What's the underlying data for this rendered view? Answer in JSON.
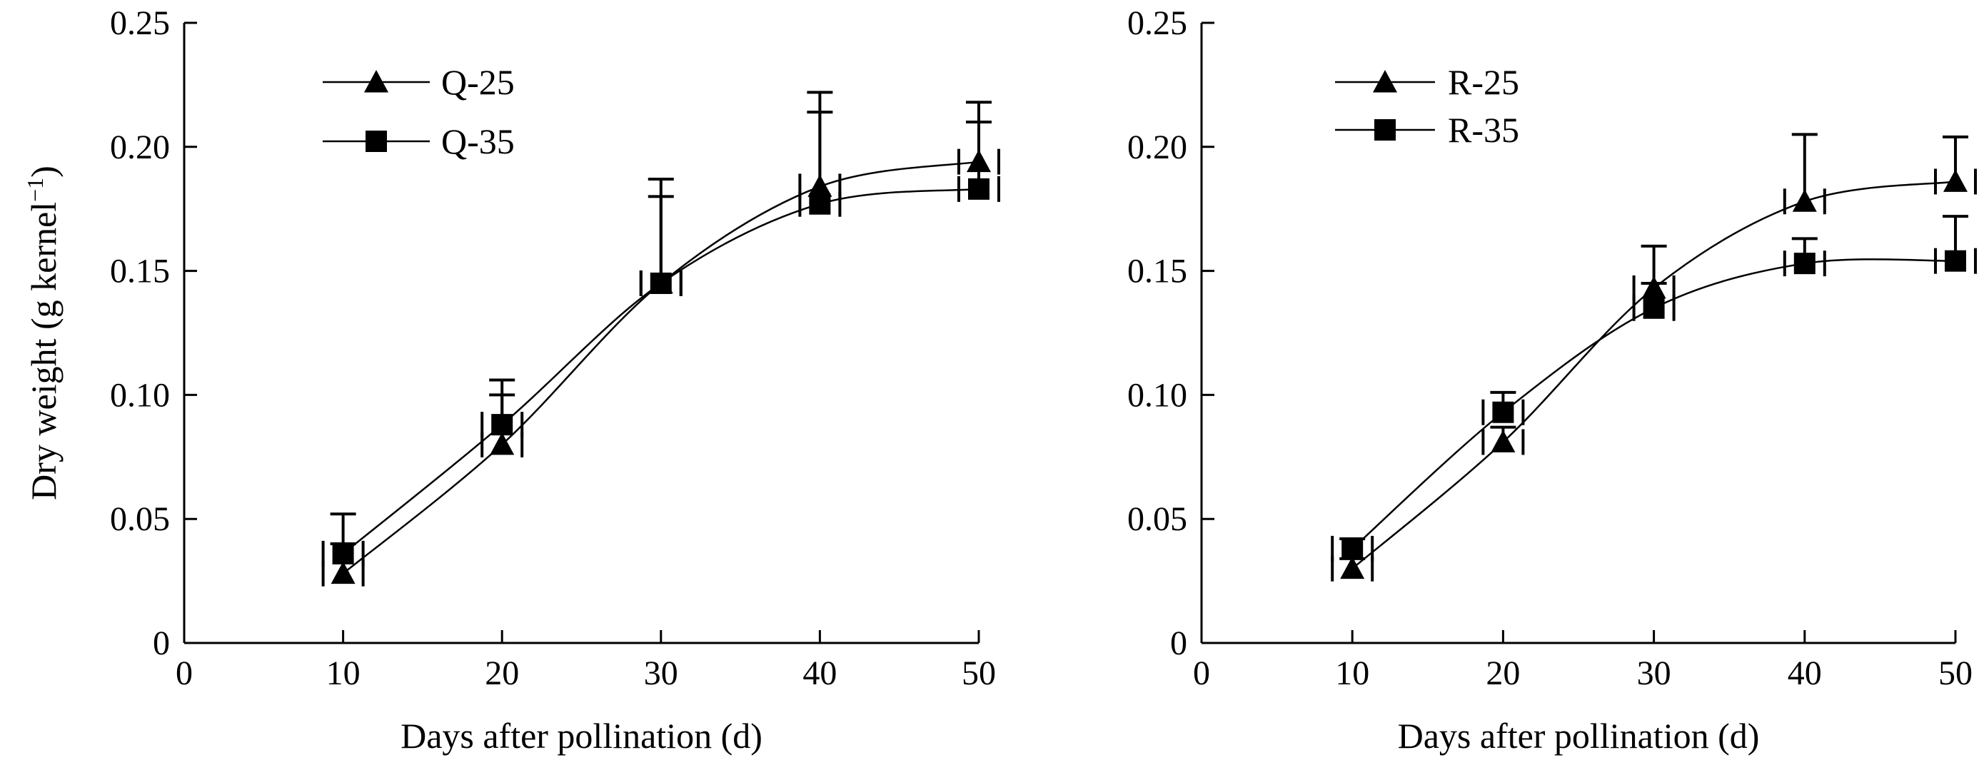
{
  "chart_data": [
    {
      "type": "line",
      "panel": "left",
      "title": "",
      "xlabel": "Days after pollination (d)",
      "ylabel": "Dry weight (g kernel",
      "ylabel_superscript": "−1",
      "ylabel_close": ")",
      "xlim": [
        0,
        50
      ],
      "ylim": [
        0,
        0.25
      ],
      "x_ticks": [
        "0",
        "10",
        "20",
        "30",
        "40",
        "50"
      ],
      "y_ticks": [
        "0",
        "0.05",
        "0.10",
        "0.15",
        "0.20",
        "0.25"
      ],
      "legend": "top-left",
      "x": [
        10,
        20,
        30,
        40,
        50
      ],
      "series": [
        {
          "name": "Q-25",
          "marker": "triangle",
          "values": [
            0.028,
            0.08,
            0.145,
            0.184,
            0.194
          ],
          "errors": [
            0.012,
            0.02,
            0.035,
            0.03,
            0.016
          ]
        },
        {
          "name": "Q-35",
          "marker": "square",
          "values": [
            0.036,
            0.088,
            0.145,
            0.177,
            0.183
          ],
          "errors": [
            0.016,
            0.018,
            0.042,
            0.045,
            0.035
          ]
        }
      ]
    },
    {
      "type": "line",
      "panel": "right",
      "title": "",
      "xlabel": "Days after pollination (d)",
      "ylabel": "",
      "xlim": [
        0,
        50
      ],
      "ylim": [
        0,
        0.25
      ],
      "x_ticks": [
        "0",
        "10",
        "20",
        "30",
        "40",
        "50"
      ],
      "y_ticks": [
        "0",
        "0.05",
        "0.10",
        "0.15",
        "0.20",
        "0.25"
      ],
      "legend": "top-left",
      "x": [
        10,
        20,
        30,
        40,
        50
      ],
      "series": [
        {
          "name": "R-25",
          "marker": "triangle",
          "values": [
            0.03,
            0.081,
            0.143,
            0.178,
            0.186
          ],
          "errors": [
            0.004,
            0.006,
            0.017,
            0.027,
            0.018
          ]
        },
        {
          "name": "R-35",
          "marker": "square",
          "values": [
            0.038,
            0.093,
            0.135,
            0.153,
            0.154
          ],
          "errors": [
            0.004,
            0.008,
            0.01,
            0.01,
            0.018
          ]
        }
      ]
    }
  ]
}
